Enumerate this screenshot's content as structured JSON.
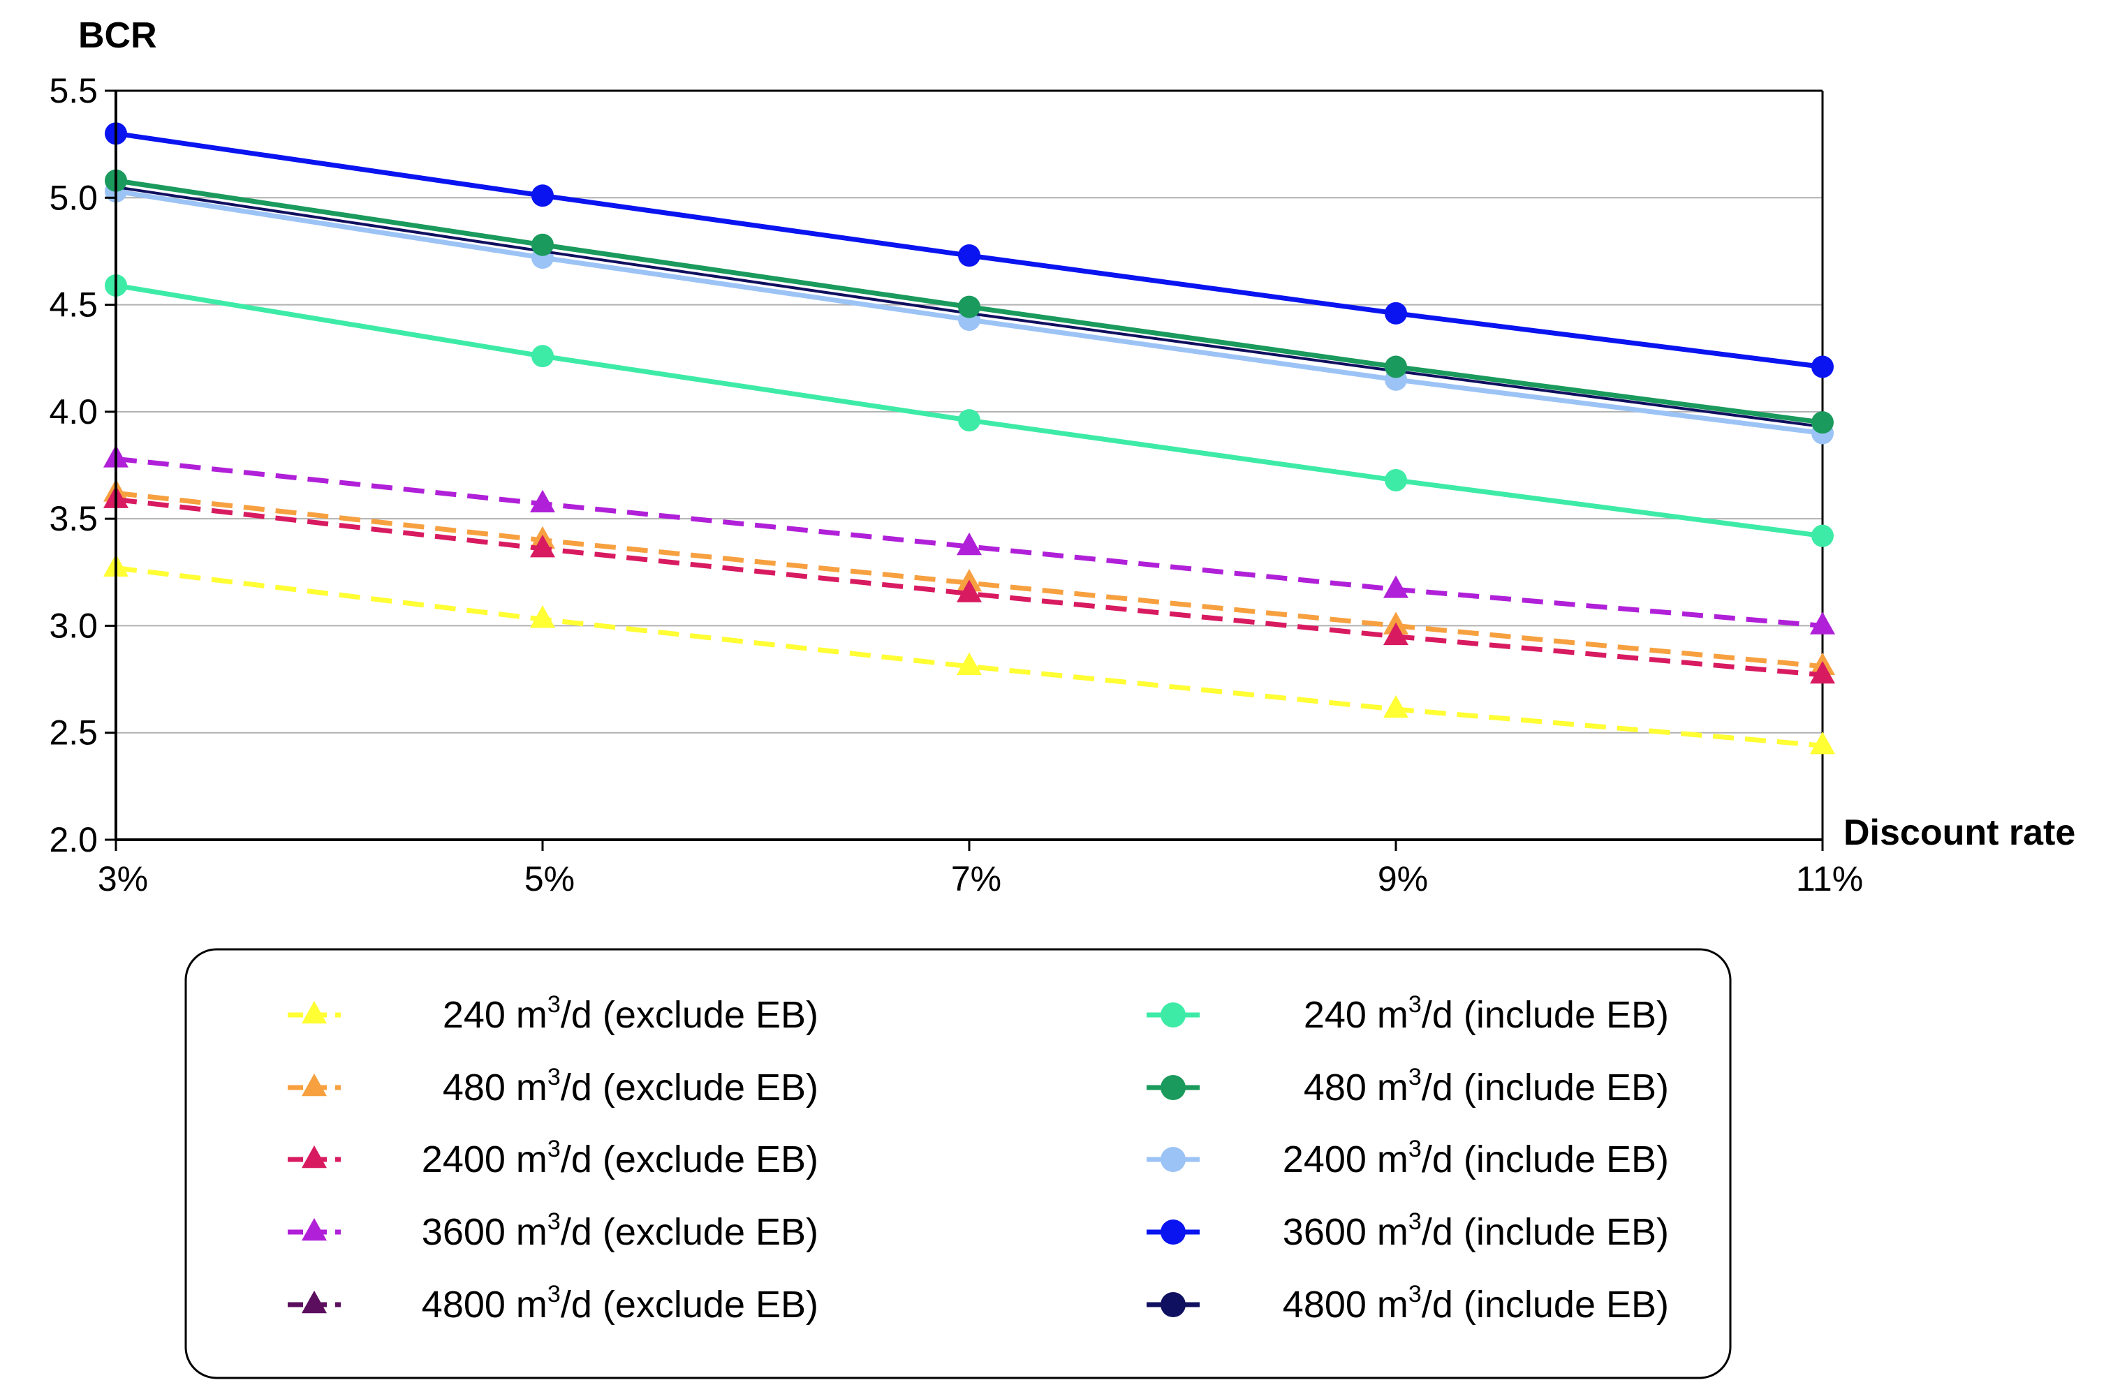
{
  "chart_data": {
    "type": "line",
    "title": "",
    "ylabel": "BCR",
    "xlabel": "Discount rate",
    "categories": [
      "3%",
      "5%",
      "7%",
      "9%",
      "11%"
    ],
    "x": [
      3,
      5,
      7,
      9,
      11
    ],
    "xlim": [
      3,
      11
    ],
    "ylim": [
      2.0,
      5.5
    ],
    "yticks": [
      2.0,
      2.5,
      3.0,
      3.5,
      4.0,
      4.5,
      5.0,
      5.5
    ],
    "ytick_labels": [
      "2.0",
      "2.5",
      "3.0",
      "3.5",
      "4.0",
      "4.5",
      "5.0",
      "5.5"
    ],
    "grid": "horizontal",
    "legend_position": "bottom",
    "series": [
      {
        "id": "s240x",
        "name_pre": "240 m",
        "name_sup": "3",
        "name_post": "/d (exclude EB)",
        "values": [
          3.27,
          3.03,
          2.81,
          2.61,
          2.44
        ],
        "color": "#FFFF33",
        "marker": "triangle",
        "dash": true
      },
      {
        "id": "s480x",
        "name_pre": "480 m",
        "name_sup": "3",
        "name_post": "/d (exclude EB)",
        "values": [
          3.62,
          3.4,
          3.2,
          3.0,
          2.81
        ],
        "color": "#F7A040",
        "marker": "triangle",
        "dash": true
      },
      {
        "id": "s2400x",
        "name_pre": "2400 m",
        "name_sup": "3",
        "name_post": "/d (exclude EB)",
        "values": [
          3.59,
          3.36,
          3.15,
          2.95,
          2.77
        ],
        "color": "#D81B60",
        "marker": "triangle",
        "dash": true
      },
      {
        "id": "s3600x",
        "name_pre": "3600 m",
        "name_sup": "3",
        "name_post": "/d (exclude EB)",
        "values": [
          3.78,
          3.57,
          3.37,
          3.17,
          3.0
        ],
        "color": "#B020D8",
        "marker": "triangle",
        "dash": true
      },
      {
        "id": "s4800x",
        "name_pre": "4800 m",
        "name_sup": "3",
        "name_post": "/d (exclude EB)",
        "values": [
          null,
          null,
          null,
          null,
          null
        ],
        "color": "#5B0E5E",
        "marker": "triangle",
        "dash": true
      },
      {
        "id": "s240i",
        "name_pre": "240 m",
        "name_sup": "3",
        "name_post": "/d (include EB)",
        "values": [
          4.59,
          4.26,
          3.96,
          3.68,
          3.42
        ],
        "color": "#3DEBA7",
        "marker": "circle",
        "dash": false
      },
      {
        "id": "s2400i",
        "name_pre": "2400 m",
        "name_sup": "3",
        "name_post": "/d (include EB)",
        "values": [
          5.03,
          4.72,
          4.43,
          4.15,
          3.9
        ],
        "color": "#9CC3F5",
        "marker": "circle",
        "dash": false
      },
      {
        "id": "s4800i",
        "name_pre": "4800 m",
        "name_sup": "3",
        "name_post": "/d (include EB)",
        "values": [
          5.05,
          4.75,
          4.46,
          4.19,
          3.93
        ],
        "color": "#101060",
        "marker": "none",
        "dash": false
      },
      {
        "id": "s480i",
        "name_pre": "480 m",
        "name_sup": "3",
        "name_post": "/d (include EB)",
        "values": [
          5.08,
          4.78,
          4.49,
          4.21,
          3.95
        ],
        "color": "#1A9A5C",
        "marker": "circle",
        "dash": false
      },
      {
        "id": "s3600i",
        "name_pre": "3600 m",
        "name_sup": "3",
        "name_post": "/d (include EB)",
        "values": [
          5.3,
          5.01,
          4.73,
          4.46,
          4.21
        ],
        "color": "#0A14F0",
        "marker": "circle",
        "dash": false
      }
    ],
    "legend_left": [
      "s240x",
      "s480x",
      "s2400x",
      "s3600x",
      "s4800x"
    ],
    "legend_right": [
      "s240i",
      "s480i",
      "s2400i",
      "s3600i",
      "s4800i"
    ]
  }
}
